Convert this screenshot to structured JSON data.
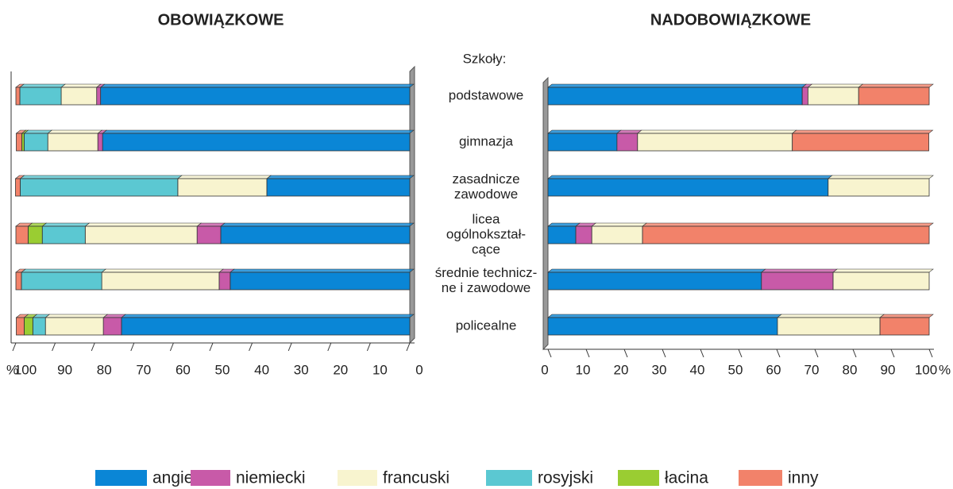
{
  "chart_data": [
    {
      "type": "bar",
      "orientation": "horizontal",
      "stacked": true,
      "reversed": true,
      "title": "OBOWIĄZKOWE",
      "x_unit": "%",
      "categories_title": "Szkoły:",
      "categories": [
        [
          "podstawowe"
        ],
        [
          "gimnazja"
        ],
        [
          "zasadnicze",
          "zawodowe"
        ],
        [
          "licea",
          "ogólnokształ-",
          "cące"
        ],
        [
          "średnie technicz-",
          "ne i zawodowe"
        ],
        [
          "policealne"
        ]
      ],
      "xlim": [
        0,
        100
      ],
      "xticks": [
        100,
        90,
        80,
        70,
        60,
        50,
        40,
        30,
        20,
        10,
        0
      ],
      "series": [
        {
          "name": "angielski",
          "color": "#0a86d6",
          "values": [
            78.5,
            78,
            36.3,
            48,
            45.6,
            73.2
          ]
        },
        {
          "name": "niemiecki",
          "color": "#c85aa8",
          "values": [
            1,
            1.2,
            0,
            6,
            2.8,
            4.6
          ]
        },
        {
          "name": "francuski",
          "color": "#f8f4cf",
          "values": [
            9,
            12.7,
            22.6,
            28.4,
            29.8,
            14.7
          ]
        },
        {
          "name": "rosyjski",
          "color": "#5bc8d2",
          "values": [
            10.5,
            6,
            40,
            10.9,
            20.4,
            3.2
          ]
        },
        {
          "name": "łacina",
          "color": "#9acd32",
          "values": [
            0,
            0.6,
            0,
            3.6,
            0,
            2.2
          ]
        },
        {
          "name": "inny",
          "color": "#f2826a",
          "values": [
            1,
            1.4,
            1.2,
            3.1,
            1.4,
            2
          ]
        }
      ]
    },
    {
      "type": "bar",
      "orientation": "horizontal",
      "stacked": true,
      "reversed": false,
      "title": "NADOBOWIĄZKOWE",
      "x_unit": "%",
      "xlim": [
        0,
        100
      ],
      "xticks": [
        0,
        10,
        20,
        30,
        40,
        50,
        60,
        70,
        80,
        90,
        100
      ],
      "series": [
        {
          "color": "#0a86d6",
          "values": [
            66.7,
            18.1,
            73.5,
            7.3,
            56,
            60.2
          ]
        },
        {
          "color": "#c85aa8",
          "values": [
            1.5,
            5.4,
            0,
            4.2,
            18.8,
            0
          ]
        },
        {
          "color": "#f8f4cf",
          "values": [
            13.3,
            40.6,
            26.5,
            13.3,
            25.2,
            26.9
          ]
        },
        {
          "color": "#f2826a",
          "values": [
            18.5,
            35.8,
            0,
            75.2,
            0,
            12.9
          ]
        }
      ]
    }
  ]
}
